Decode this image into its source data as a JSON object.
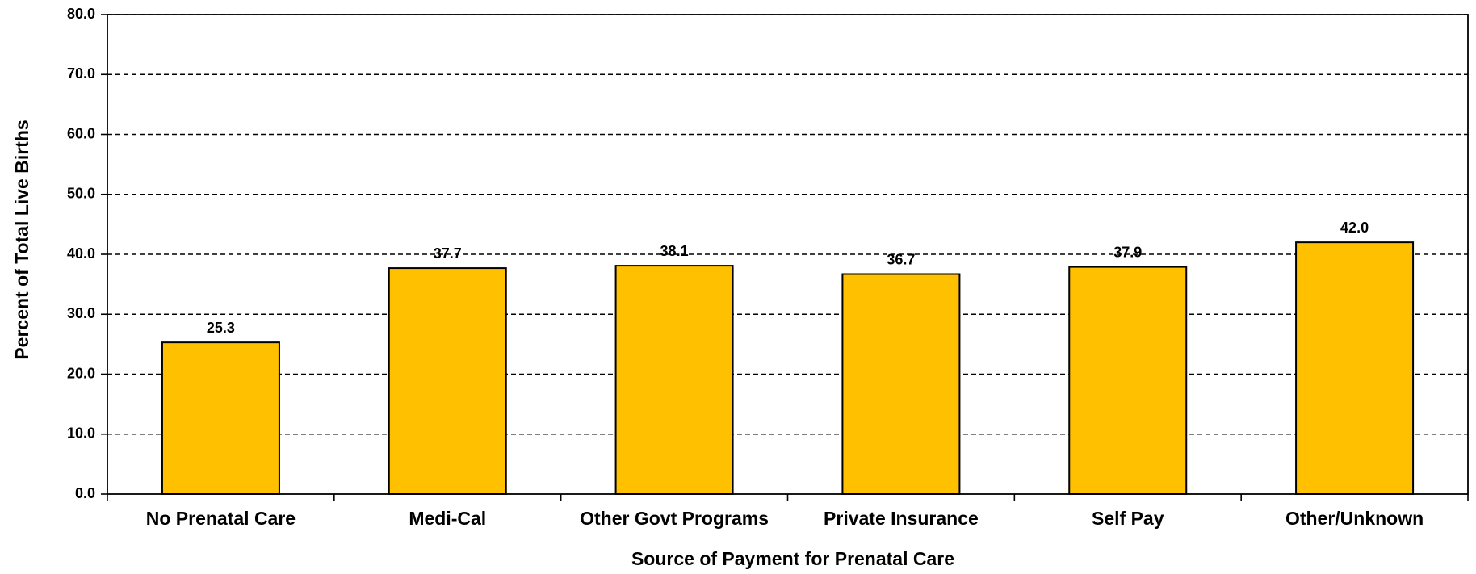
{
  "chart_data": {
    "type": "bar",
    "title": "",
    "xlabel": "Source of Payment for Prenatal Care",
    "ylabel": "Percent of Total Live Births",
    "categories": [
      "No Prenatal Care",
      "Medi-Cal",
      "Other Govt Programs",
      "Private Insurance",
      "Self Pay",
      "Other/Unknown"
    ],
    "values": [
      25.3,
      37.7,
      38.1,
      36.7,
      37.9,
      42.0
    ],
    "value_labels": [
      "25.3",
      "37.7",
      "38.1",
      "36.7",
      "37.9",
      "42.0"
    ],
    "ylim": [
      0,
      80
    ],
    "y_ticks": [
      0,
      10,
      20,
      30,
      40,
      50,
      60,
      70,
      80
    ],
    "y_tick_labels": [
      "0.0",
      "10.0",
      "20.0",
      "30.0",
      "40.0",
      "50.0",
      "60.0",
      "70.0",
      "80.0"
    ],
    "grid": true,
    "grid_style": "dashed",
    "legend": "none",
    "colors": {
      "bar_fill": "#FFC000",
      "bar_stroke": "#000000",
      "axis": "#000000",
      "grid": "#000000"
    }
  }
}
